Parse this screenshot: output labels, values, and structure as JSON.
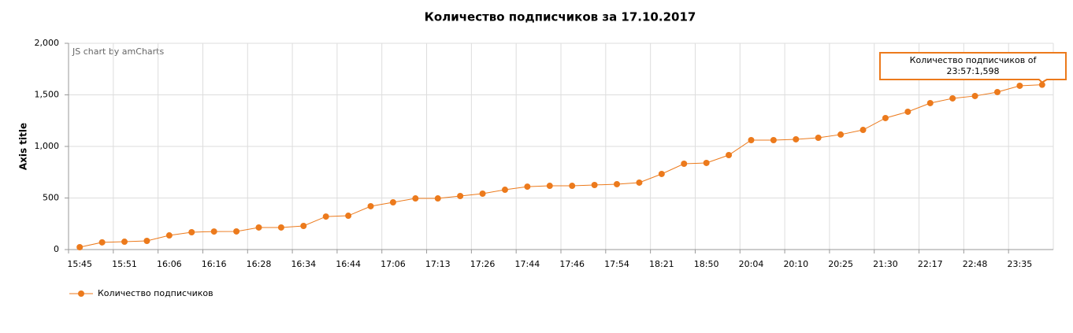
{
  "chart_data": {
    "type": "line",
    "title": "Количество подписчиков за 17.10.2017",
    "y_axis_title": "Axis title",
    "credit": "JS chart by amCharts",
    "categories": [
      "15:45",
      null,
      "15:51",
      null,
      "16:06",
      null,
      "16:16",
      null,
      "16:28",
      null,
      "16:34",
      null,
      "16:44",
      null,
      "17:06",
      null,
      "17:13",
      null,
      "17:26",
      null,
      "17:44",
      null,
      "17:46",
      null,
      "17:54",
      null,
      "18:21",
      null,
      "18:50",
      null,
      "20:04",
      null,
      "20:10",
      null,
      "20:25",
      null,
      "21:30",
      null,
      "22:17",
      null,
      "22:48",
      null,
      "23:35",
      null
    ],
    "series": [
      {
        "name": "Количество подписчиков",
        "color": "#ec7a1c",
        "values": [
          23,
          70,
          76,
          84,
          137,
          168,
          175,
          176,
          214,
          214,
          229,
          320,
          328,
          420,
          458,
          496,
          496,
          519,
          542,
          580,
          610,
          618,
          618,
          626,
          634,
          649,
          733,
          832,
          840,
          916,
          1061,
          1061,
          1069,
          1084,
          1115,
          1160,
          1275,
          1336,
          1420,
          1466,
          1489,
          1527,
          1588,
          1598
        ]
      }
    ],
    "ylim": [
      0,
      2000
    ],
    "yticks": [
      0,
      500,
      {
        "value": 1000,
        "label": "1,000"
      },
      {
        "value": 1500,
        "label": "1,500"
      },
      {
        "value": 2000,
        "label": "2,000"
      }
    ],
    "grid": true,
    "legend": "bottom-left",
    "tooltip": [
      "Количество подписчиков of",
      "23:57:1,598"
    ]
  }
}
